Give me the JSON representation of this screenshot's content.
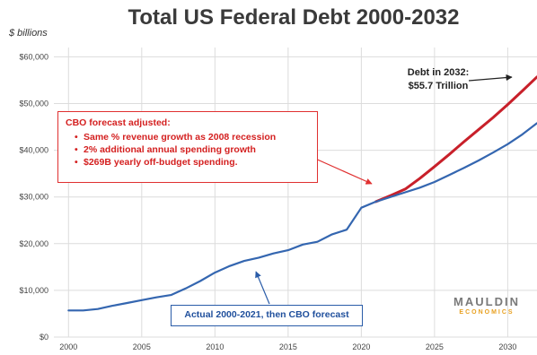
{
  "chart_data": {
    "type": "line",
    "title": "Total US Federal Debt 2000-2032",
    "unit_label": "$ billions",
    "xlabel": "",
    "ylabel": "",
    "xlim": [
      1999,
      2032
    ],
    "ylim": [
      0,
      62000
    ],
    "y_ticks": [
      0,
      10000,
      20000,
      30000,
      40000,
      50000,
      60000
    ],
    "y_tick_labels": [
      "$0",
      "$10,000",
      "$20,000",
      "$30,000",
      "$40,000",
      "$50,000",
      "$60,000"
    ],
    "x_ticks": [
      2000,
      2005,
      2010,
      2015,
      2020,
      2025,
      2030
    ],
    "x_tick_labels": [
      "2000",
      "2005",
      "2010",
      "2015",
      "2020",
      "2025",
      "2030"
    ],
    "grid": true,
    "colors": {
      "blue": "#3466b0",
      "red": "#c8202a",
      "annotation_red": "#e03030",
      "annotation_blue": "#2a5ca8"
    },
    "series": [
      {
        "role": "actual-then-cbo",
        "color": "#3466b0",
        "x": [
          2000,
          2001,
          2002,
          2003,
          2004,
          2005,
          2006,
          2007,
          2008,
          2009,
          2010,
          2011,
          2012,
          2013,
          2014,
          2015,
          2016,
          2017,
          2018,
          2019,
          2020,
          2021,
          2022,
          2023,
          2024,
          2025,
          2026,
          2027,
          2028,
          2029,
          2030,
          2031,
          2032
        ],
        "values": [
          5700,
          5700,
          6000,
          6700,
          7300,
          7900,
          8500,
          9000,
          10400,
          12000,
          13800,
          15200,
          16300,
          17000,
          17900,
          18600,
          19800,
          20400,
          22000,
          23000,
          27700,
          29000,
          30000,
          31000,
          32000,
          33200,
          34700,
          36200,
          37800,
          39500,
          41300,
          43400,
          45800
        ]
      },
      {
        "role": "cbo-adjusted",
        "color": "#c8202a",
        "x": [
          2021,
          2022,
          2023,
          2024,
          2025,
          2026,
          2027,
          2028,
          2029,
          2030,
          2031,
          2032
        ],
        "values": [
          29000,
          30300,
          31700,
          34000,
          36500,
          39100,
          41800,
          44400,
          47000,
          49800,
          52700,
          55700
        ]
      }
    ]
  },
  "annotations": {
    "red_box": {
      "heading": "CBO forecast adjusted:",
      "bullets": [
        "Same % revenue growth as 2008 recession",
        "2% additional annual spending growth",
        "$269B yearly off-budget spending."
      ]
    },
    "blue_box": {
      "text": "Actual 2000-2021, then CBO forecast"
    },
    "debt_note": {
      "line1": "Debt in 2032:",
      "line2": "$55.7 Trillion"
    }
  },
  "logo": {
    "line1": "MAULDIN",
    "line2": "ECONOMICS"
  }
}
